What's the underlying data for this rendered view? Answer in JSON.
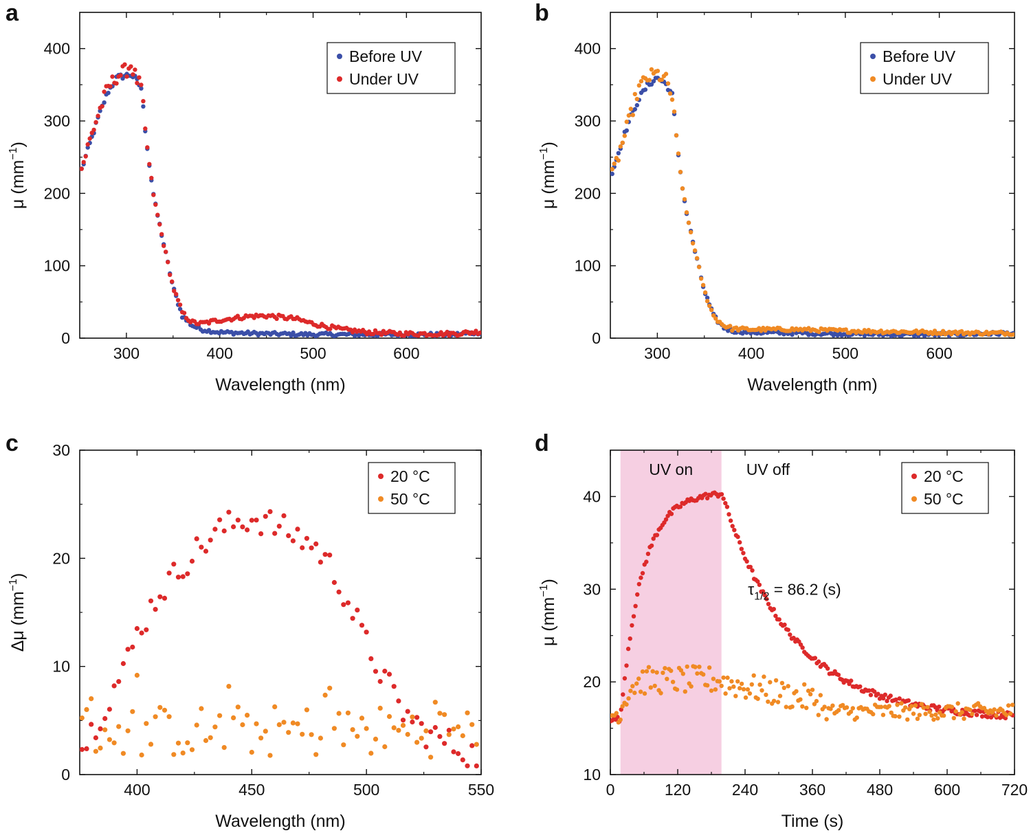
{
  "colors": {
    "before_uv": "#3b4fa8",
    "under_uv_a": "#dd2a2a",
    "under_uv_b": "#f08a24",
    "t20": "#dd2a2a",
    "t50": "#f08a24",
    "uv_band": "#f6cfe2",
    "axis": "#111111"
  },
  "chart_data": [
    {
      "id": "a",
      "panel_letter": "a",
      "type": "scatter",
      "xlabel": "Wavelength (nm)",
      "ylabel": "μ (mm",
      "ylabel_sup": "−1",
      "ylabel_close": ")",
      "xlim": [
        250,
        680
      ],
      "ylim": [
        0,
        450
      ],
      "xticks": [
        300,
        400,
        500,
        600
      ],
      "yticks": [
        0,
        100,
        200,
        300,
        400
      ],
      "legend_position": "top-right",
      "series": [
        {
          "name": "Before UV",
          "color_key": "before_uv",
          "profile": "before",
          "points": [
            [
              250,
              225
            ],
            [
              260,
              265
            ],
            [
              270,
              305
            ],
            [
              280,
              340
            ],
            [
              290,
              360
            ],
            [
              300,
              363
            ],
            [
              305,
              364
            ],
            [
              310,
              358
            ],
            [
              316,
              345
            ],
            [
              320,
              290
            ],
            [
              325,
              235
            ],
            [
              330,
              190
            ],
            [
              340,
              130
            ],
            [
              350,
              70
            ],
            [
              360,
              30
            ],
            [
              370,
              18
            ],
            [
              380,
              12
            ],
            [
              400,
              8
            ],
            [
              450,
              6
            ],
            [
              500,
              5
            ],
            [
              550,
              5
            ],
            [
              600,
              5
            ],
            [
              650,
              5
            ],
            [
              680,
              8
            ]
          ]
        },
        {
          "name": "Under UV",
          "color_key": "under_uv_a",
          "profile": "under_a",
          "points": [
            [
              250,
              225
            ],
            [
              260,
              270
            ],
            [
              270,
              310
            ],
            [
              280,
              345
            ],
            [
              290,
              362
            ],
            [
              300,
              370
            ],
            [
              305,
              378
            ],
            [
              310,
              360
            ],
            [
              316,
              345
            ],
            [
              320,
              290
            ],
            [
              325,
              235
            ],
            [
              330,
              190
            ],
            [
              340,
              130
            ],
            [
              350,
              70
            ],
            [
              360,
              35
            ],
            [
              370,
              22
            ],
            [
              380,
              20
            ],
            [
              400,
              25
            ],
            [
              430,
              30
            ],
            [
              450,
              31
            ],
            [
              480,
              27
            ],
            [
              500,
              20
            ],
            [
              530,
              12
            ],
            [
              560,
              8
            ],
            [
              600,
              6
            ],
            [
              650,
              6
            ],
            [
              680,
              9
            ]
          ]
        }
      ]
    },
    {
      "id": "b",
      "panel_letter": "b",
      "type": "scatter",
      "xlabel": "Wavelength (nm)",
      "ylabel": "μ (mm",
      "ylabel_sup": "−1",
      "ylabel_close": ")",
      "xlim": [
        250,
        680
      ],
      "ylim": [
        0,
        450
      ],
      "xticks": [
        300,
        400,
        500,
        600
      ],
      "yticks": [
        0,
        100,
        200,
        300,
        400
      ],
      "legend_position": "top-right",
      "series": [
        {
          "name": "Before UV",
          "color_key": "before_uv",
          "profile": "before",
          "points": [
            [
              250,
              220
            ],
            [
              260,
              262
            ],
            [
              270,
              300
            ],
            [
              280,
              330
            ],
            [
              290,
              350
            ],
            [
              300,
              360
            ],
            [
              310,
              350
            ],
            [
              316,
              335
            ],
            [
              320,
              280
            ],
            [
              325,
              225
            ],
            [
              330,
              180
            ],
            [
              340,
              120
            ],
            [
              350,
              65
            ],
            [
              360,
              30
            ],
            [
              370,
              15
            ],
            [
              380,
              10
            ],
            [
              400,
              8
            ],
            [
              450,
              7
            ],
            [
              500,
              6
            ],
            [
              550,
              5
            ],
            [
              600,
              5
            ],
            [
              650,
              6
            ],
            [
              680,
              7
            ]
          ]
        },
        {
          "name": "Under UV",
          "color_key": "under_uv_b",
          "profile": "under_b",
          "points": [
            [
              250,
              215
            ],
            [
              260,
              258
            ],
            [
              270,
              300
            ],
            [
              280,
              345
            ],
            [
              290,
              360
            ],
            [
              300,
              365
            ],
            [
              310,
              355
            ],
            [
              316,
              330
            ],
            [
              320,
              280
            ],
            [
              325,
              225
            ],
            [
              330,
              180
            ],
            [
              340,
              120
            ],
            [
              350,
              65
            ],
            [
              360,
              30
            ],
            [
              370,
              18
            ],
            [
              380,
              13
            ],
            [
              400,
              12
            ],
            [
              450,
              12
            ],
            [
              500,
              10
            ],
            [
              550,
              9
            ],
            [
              600,
              8
            ],
            [
              650,
              7
            ],
            [
              680,
              7
            ]
          ]
        }
      ]
    },
    {
      "id": "c",
      "panel_letter": "c",
      "type": "scatter",
      "xlabel": "Wavelength (nm)",
      "ylabel": "Δμ (mm",
      "ylabel_sup": "−1",
      "ylabel_close": ")",
      "xlim": [
        375,
        550
      ],
      "ylim": [
        0,
        30
      ],
      "xticks": [
        400,
        450,
        500,
        550
      ],
      "yticks": [
        0,
        10,
        20,
        30
      ],
      "legend_position": "top-right",
      "series": [
        {
          "name": "20 °C",
          "color_key": "t20",
          "profile": "c20",
          "points": [
            [
              375,
              2
            ],
            [
              380,
              4
            ],
            [
              385,
              6
            ],
            [
              390,
              8
            ],
            [
              395,
              10
            ],
            [
              400,
              13
            ],
            [
              405,
              15
            ],
            [
              410,
              17
            ],
            [
              415,
              18
            ],
            [
              420,
              19.5
            ],
            [
              425,
              20.5
            ],
            [
              430,
              21.5
            ],
            [
              435,
              22.5
            ],
            [
              440,
              23
            ],
            [
              445,
              23.5
            ],
            [
              450,
              23.7
            ],
            [
              455,
              23.5
            ],
            [
              460,
              23
            ],
            [
              465,
              22.5
            ],
            [
              470,
              22
            ],
            [
              475,
              21.5
            ],
            [
              480,
              20.5
            ],
            [
              485,
              19
            ],
            [
              490,
              17
            ],
            [
              495,
              14.5
            ],
            [
              500,
              12
            ],
            [
              505,
              10
            ],
            [
              510,
              8
            ],
            [
              515,
              6
            ],
            [
              520,
              5
            ],
            [
              525,
              4
            ],
            [
              530,
              3.5
            ],
            [
              535,
              3
            ],
            [
              540,
              2.5
            ],
            [
              545,
              2
            ],
            [
              550,
              1.5
            ]
          ]
        },
        {
          "name": "50 °C",
          "color_key": "t50",
          "profile": "c50",
          "points": [
            [
              375,
              3
            ],
            [
              400,
              4
            ],
            [
              425,
              4
            ],
            [
              450,
              4.5
            ],
            [
              475,
              4
            ],
            [
              500,
              4
            ],
            [
              525,
              4
            ],
            [
              550,
              4
            ]
          ]
        }
      ]
    },
    {
      "id": "d",
      "panel_letter": "d",
      "type": "scatter",
      "xlabel": "Time (s)",
      "ylabel": "μ (mm",
      "ylabel_sup": "−1",
      "ylabel_close": ")",
      "xlim": [
        0,
        720
      ],
      "ylim": [
        10,
        45
      ],
      "xticks": [
        0,
        120,
        240,
        360,
        480,
        600,
        720
      ],
      "yticks": [
        10,
        20,
        30,
        40
      ],
      "legend_position": "top-right",
      "uv_on_interval": [
        18,
        198
      ],
      "region_labels": {
        "on": "UV on",
        "off": "UV off"
      },
      "annotation": {
        "tau": "τ",
        "sub": "1/2",
        "rest": " = 86.2 (s)",
        "x": 245,
        "y": 30
      },
      "series": [
        {
          "name": "20 °C",
          "color_key": "t20",
          "profile": "d20",
          "baseline": 16,
          "plateau": 40.5,
          "tau_half": 86.2
        },
        {
          "name": "50 °C",
          "color_key": "t50",
          "profile": "d50",
          "baseline": 16.5,
          "uv_level": 20.2
        }
      ]
    }
  ]
}
